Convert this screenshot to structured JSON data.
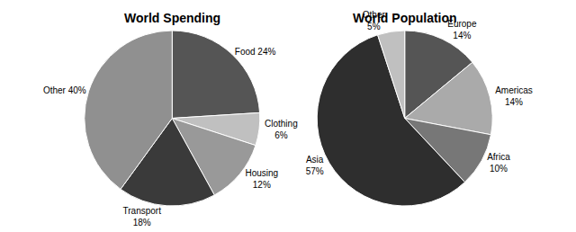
{
  "chart_data": [
    {
      "type": "pie",
      "title": "World Spending",
      "categories": [
        "Food",
        "Clothing",
        "Housing",
        "Transport",
        "Other"
      ],
      "values": [
        24,
        6,
        12,
        18,
        40
      ],
      "value_labels": [
        "Food 24%",
        "Clothing\n6%",
        "Housing\n12%",
        "Transport\n18%",
        "Other 40%"
      ],
      "colors": [
        "#555555",
        "#c0c0c0",
        "#999999",
        "#3a3a3a",
        "#909090"
      ]
    },
    {
      "type": "pie",
      "title": "World Population",
      "categories": [
        "Europe",
        "Americas",
        "Africa",
        "Asia",
        "Other"
      ],
      "values": [
        14,
        14,
        10,
        57,
        5
      ],
      "value_labels": [
        "Europe\n14%",
        "Americas\n14%",
        "Africa\n10%",
        "Asia\n57%",
        "Other\n5%"
      ],
      "colors": [
        "#555555",
        "#aaaaaa",
        "#777777",
        "#2e2e2e",
        "#c0c0c0"
      ]
    }
  ]
}
